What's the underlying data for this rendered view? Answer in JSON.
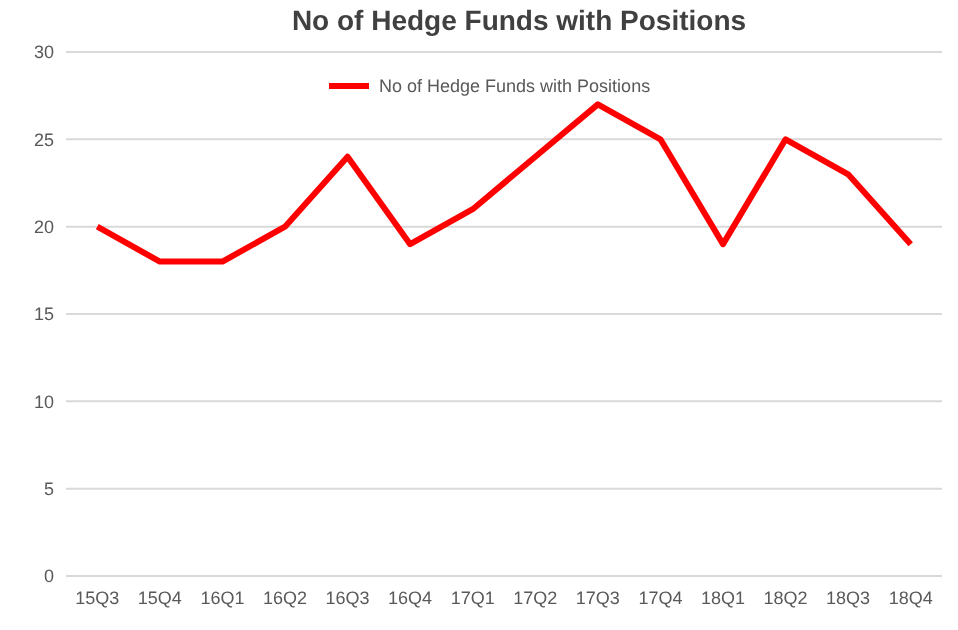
{
  "chart_data": {
    "type": "line",
    "title": "No of Hedge Funds with Positions",
    "categories": [
      "15Q3",
      "15Q4",
      "16Q1",
      "16Q2",
      "16Q3",
      "16Q4",
      "17Q1",
      "17Q2",
      "17Q3",
      "17Q4",
      "18Q1",
      "18Q2",
      "18Q3",
      "18Q4"
    ],
    "series": [
      {
        "name": "No of Hedge Funds with Positions",
        "color": "#ff0000",
        "values": [
          20,
          18,
          18,
          20,
          24,
          19,
          21,
          24,
          27,
          25,
          19,
          25,
          23,
          19
        ]
      }
    ],
    "ylim": [
      0,
      30
    ],
    "yticks": [
      0,
      5,
      10,
      15,
      20,
      25,
      30
    ],
    "grid": "y",
    "legend": "top",
    "marker": "none",
    "line_style": "solid"
  }
}
